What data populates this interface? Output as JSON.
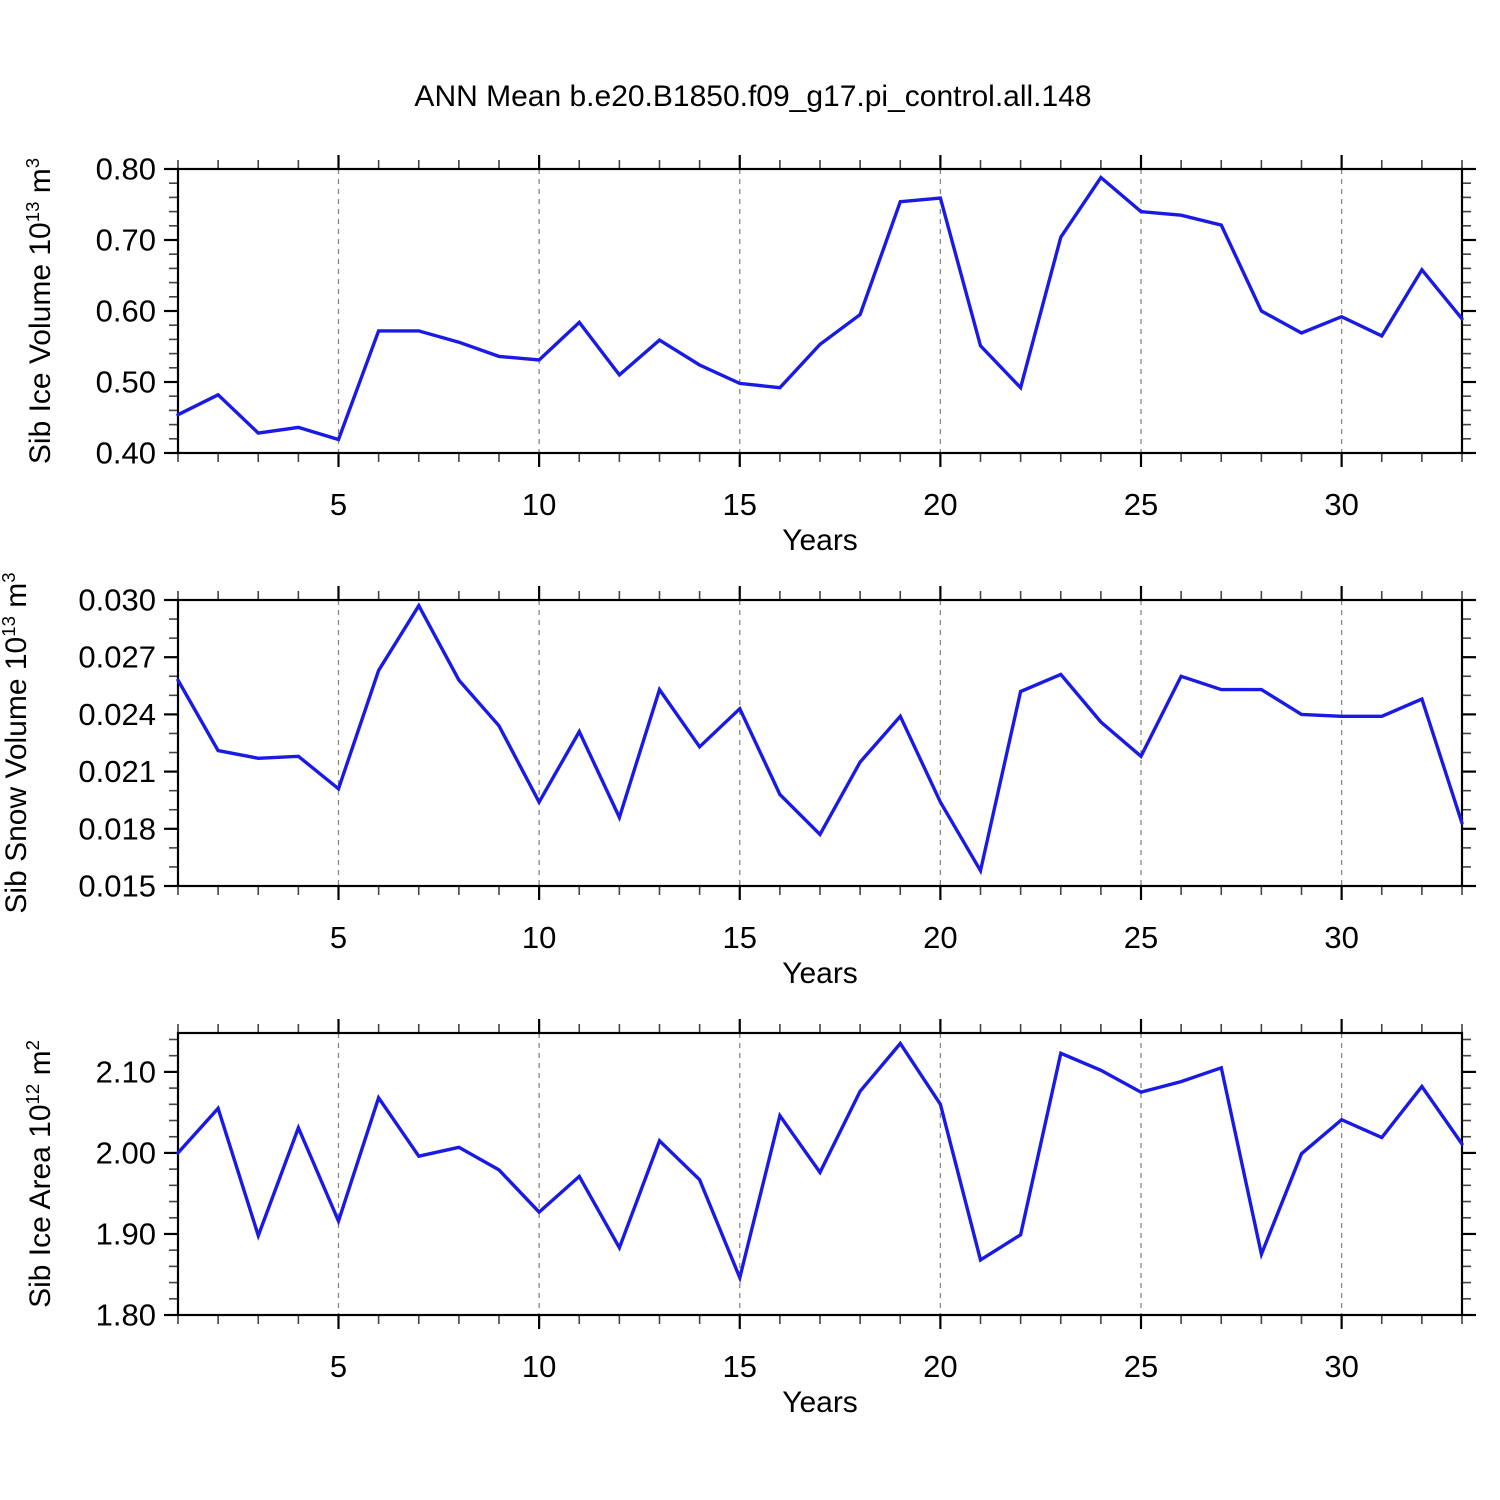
{
  "title": "ANN Mean b.e20.B1850.f09_g17.pi_control.all.148",
  "colors": {
    "line": "#1a1ae6",
    "grid": "#888888",
    "axis": "#000000",
    "minor_tick": "#444444",
    "background": "#ffffff"
  },
  "chart_data": [
    {
      "type": "line",
      "name": "sib-ice-volume",
      "xlabel": "Years",
      "ylabel_text": "Sib Ice Volume 10^13 m^3",
      "ylabel": {
        "base1": "Sib Ice Volume 10",
        "exp1": "13",
        "base2": " m",
        "exp2": "3"
      },
      "x_range": [
        1,
        33
      ],
      "xticks": [
        5,
        10,
        15,
        20,
        25,
        30
      ],
      "xtick_labels": [
        "5",
        "10",
        "15",
        "20",
        "25",
        "30"
      ],
      "x_minor_step": 1,
      "ylim": [
        0.4,
        0.8
      ],
      "ytick_values": [
        0.4,
        0.5,
        0.6,
        0.7,
        0.8
      ],
      "ytick_labels": [
        "0.40",
        "0.50",
        "0.60",
        "0.70",
        "0.80"
      ],
      "y_minor_step": 0.02,
      "grid": "vertical-dashed-at-major-xticks",
      "legend": "none",
      "x": [
        1,
        2,
        3,
        4,
        5,
        6,
        7,
        8,
        9,
        10,
        11,
        12,
        13,
        14,
        15,
        16,
        17,
        18,
        19,
        20,
        21,
        22,
        23,
        24,
        25,
        26,
        27,
        28,
        29,
        30,
        31,
        32,
        33
      ],
      "values": [
        0.454,
        0.482,
        0.428,
        0.436,
        0.419,
        0.572,
        0.572,
        0.556,
        0.536,
        0.531,
        0.584,
        0.51,
        0.559,
        0.524,
        0.498,
        0.492,
        0.553,
        0.595,
        0.754,
        0.759,
        0.551,
        0.492,
        0.704,
        0.788,
        0.74,
        0.735,
        0.721,
        0.6,
        0.569,
        0.592,
        0.565,
        0.658,
        0.589
      ]
    },
    {
      "type": "line",
      "name": "sib-snow-volume",
      "xlabel": "Years",
      "ylabel_text": "Sib Snow Volume 10^13 m^3",
      "ylabel": {
        "base1": "Sib Snow Volume 10",
        "exp1": "13",
        "base2": " m",
        "exp2": "3"
      },
      "x_range": [
        1,
        33
      ],
      "xticks": [
        5,
        10,
        15,
        20,
        25,
        30
      ],
      "xtick_labels": [
        "5",
        "10",
        "15",
        "20",
        "25",
        "30"
      ],
      "x_minor_step": 1,
      "ylim": [
        0.015,
        0.03
      ],
      "ytick_values": [
        0.015,
        0.018,
        0.021,
        0.024,
        0.027,
        0.03
      ],
      "ytick_labels": [
        "0.015",
        "0.018",
        "0.021",
        "0.024",
        "0.027",
        "0.030"
      ],
      "y_minor_step": 0.001,
      "grid": "vertical-dashed-at-major-xticks",
      "legend": "none",
      "x": [
        1,
        2,
        3,
        4,
        5,
        6,
        7,
        8,
        9,
        10,
        11,
        12,
        13,
        14,
        15,
        16,
        17,
        18,
        19,
        20,
        21,
        22,
        23,
        24,
        25,
        26,
        27,
        28,
        29,
        30,
        31,
        32,
        33
      ],
      "values": [
        0.0258,
        0.0221,
        0.0217,
        0.0218,
        0.0201,
        0.0263,
        0.0297,
        0.0258,
        0.0234,
        0.0194,
        0.0231,
        0.0186,
        0.0253,
        0.0223,
        0.0243,
        0.0198,
        0.0177,
        0.0215,
        0.0239,
        0.0194,
        0.0158,
        0.0252,
        0.0261,
        0.0236,
        0.0218,
        0.026,
        0.0253,
        0.0253,
        0.024,
        0.0239,
        0.0239,
        0.0248,
        0.0183
      ]
    },
    {
      "type": "line",
      "name": "sib-ice-area",
      "xlabel": "Years",
      "ylabel_text": "Sib Ice Area 10^12 m^2",
      "ylabel": {
        "base1": "Sib Ice Area 10",
        "exp1": "12",
        "base2": " m",
        "exp2": "2"
      },
      "x_range": [
        1,
        33
      ],
      "xticks": [
        5,
        10,
        15,
        20,
        25,
        30
      ],
      "xtick_labels": [
        "5",
        "10",
        "15",
        "20",
        "25",
        "30"
      ],
      "x_minor_step": 1,
      "ylim": [
        1.8,
        2.148
      ],
      "ytick_values": [
        1.8,
        1.9,
        2.0,
        2.1
      ],
      "ytick_labels": [
        "1.80",
        "1.90",
        "2.00",
        "2.10"
      ],
      "y_minor_step": 0.02,
      "grid": "vertical-dashed-at-major-xticks",
      "legend": "none",
      "x": [
        1,
        2,
        3,
        4,
        5,
        6,
        7,
        8,
        9,
        10,
        11,
        12,
        13,
        14,
        15,
        16,
        17,
        18,
        19,
        20,
        21,
        22,
        23,
        24,
        25,
        26,
        27,
        28,
        29,
        30,
        31,
        32,
        33
      ],
      "values": [
        2.0,
        2.055,
        1.898,
        2.031,
        1.916,
        2.068,
        1.996,
        2.007,
        1.979,
        1.927,
        1.971,
        1.883,
        2.015,
        1.967,
        1.846,
        2.046,
        1.976,
        2.076,
        2.135,
        2.06,
        1.868,
        1.899,
        2.123,
        2.102,
        2.075,
        2.088,
        2.105,
        1.875,
        1.999,
        2.041,
        2.019,
        2.082,
        2.011
      ]
    }
  ]
}
